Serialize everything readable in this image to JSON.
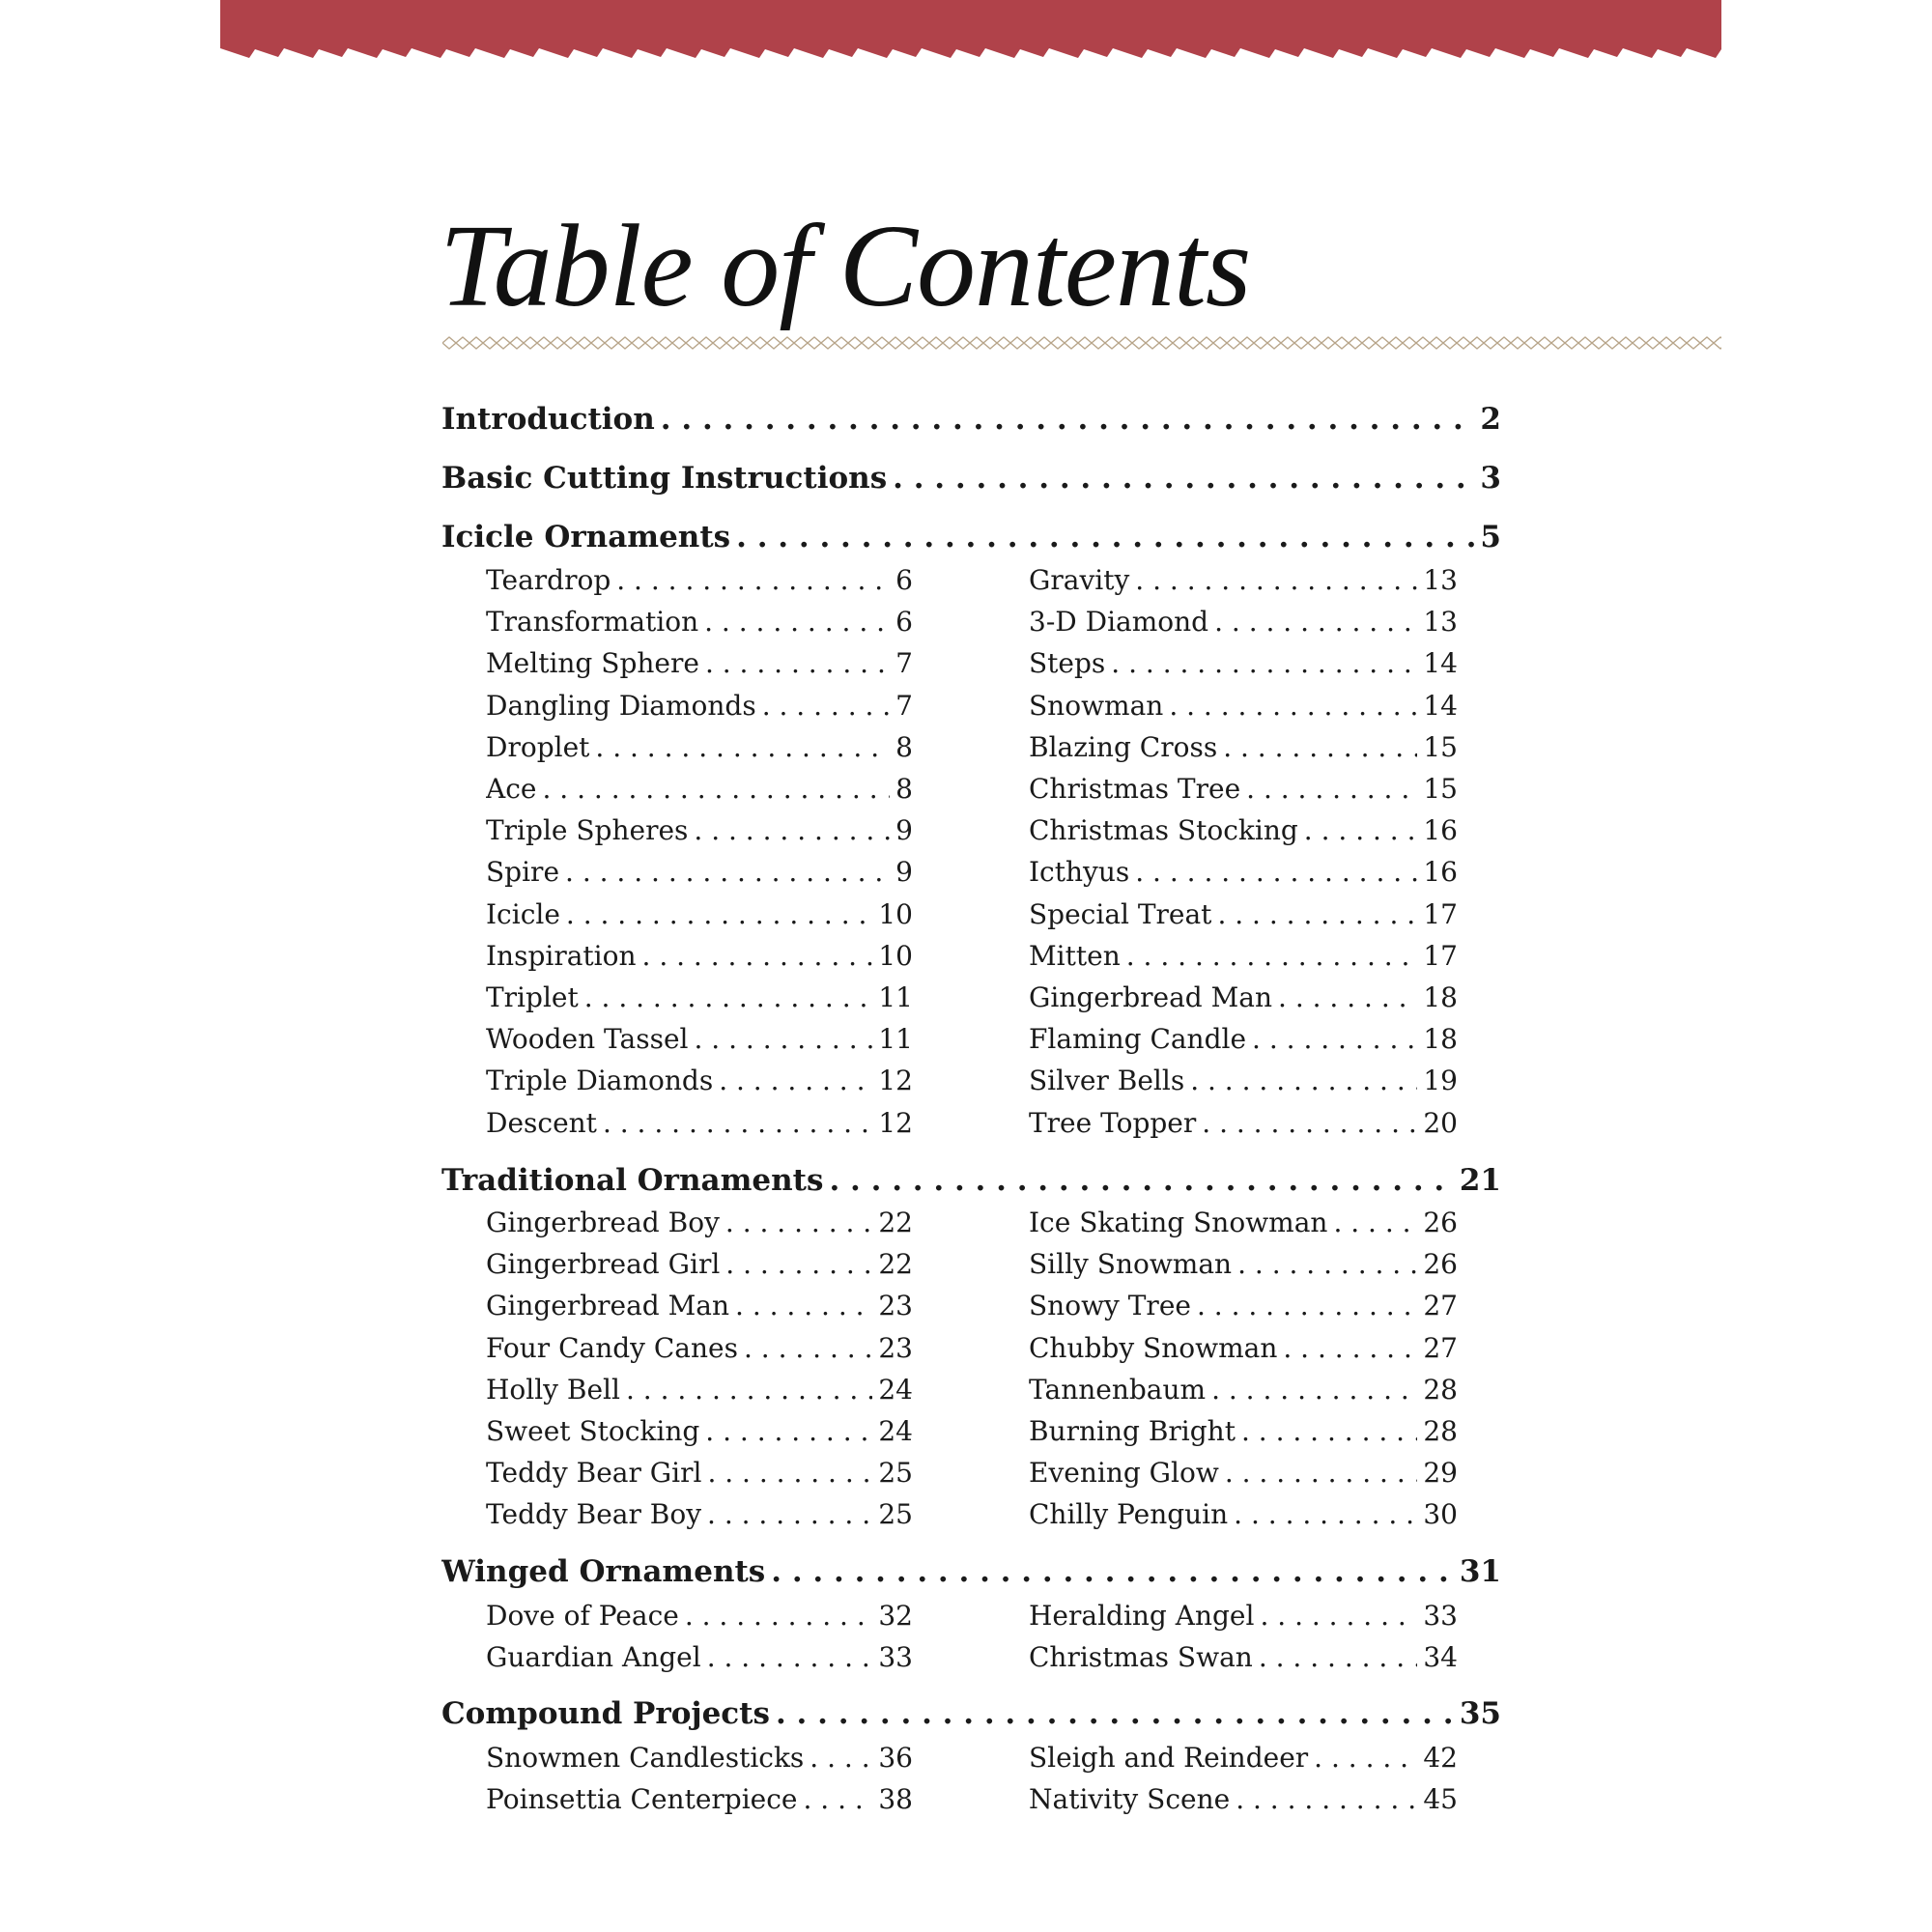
{
  "title": "Table of Contents",
  "colors": {
    "banner": "#b0424a",
    "divider": "#b8a58a"
  },
  "sections": [
    {
      "label": "Introduction",
      "page": "2",
      "items": []
    },
    {
      "label": "Basic Cutting Instructions",
      "page": "3",
      "items": []
    },
    {
      "label": "Icicle Ornaments",
      "page": "5",
      "items": [
        [
          "Teardrop",
          "6"
        ],
        [
          "Transformation",
          "6"
        ],
        [
          "Melting Sphere",
          "7"
        ],
        [
          "Dangling Diamonds",
          "7"
        ],
        [
          "Droplet",
          "8"
        ],
        [
          "Ace",
          "8"
        ],
        [
          "Triple Spheres",
          "9"
        ],
        [
          "Spire",
          "9"
        ],
        [
          "Icicle",
          "10"
        ],
        [
          "Inspiration",
          "10"
        ],
        [
          "Triplet",
          "11"
        ],
        [
          "Wooden Tassel",
          "11"
        ],
        [
          "Triple Diamonds",
          "12"
        ],
        [
          "Descent",
          "12"
        ],
        [
          "Gravity",
          "13"
        ],
        [
          "3-D Diamond",
          "13"
        ],
        [
          "Steps",
          "14"
        ],
        [
          "Snowman",
          "14"
        ],
        [
          "Blazing Cross",
          "15"
        ],
        [
          "Christmas Tree",
          "15"
        ],
        [
          "Christmas Stocking",
          "16"
        ],
        [
          "Icthyus",
          "16"
        ],
        [
          "Special Treat",
          "17"
        ],
        [
          "Mitten",
          "17"
        ],
        [
          "Gingerbread Man",
          "18"
        ],
        [
          "Flaming Candle",
          "18"
        ],
        [
          "Silver Bells",
          "19"
        ],
        [
          "Tree Topper",
          "20"
        ]
      ]
    },
    {
      "label": "Traditional Ornaments",
      "page": "21",
      "items": [
        [
          "Gingerbread Boy",
          "22"
        ],
        [
          "Gingerbread Girl",
          "22"
        ],
        [
          "Gingerbread Man",
          "23"
        ],
        [
          "Four Candy Canes",
          "23"
        ],
        [
          "Holly Bell",
          "24"
        ],
        [
          "Sweet Stocking",
          "24"
        ],
        [
          "Teddy Bear Girl",
          "25"
        ],
        [
          "Teddy Bear Boy",
          "25"
        ],
        [
          "Ice Skating Snowman",
          "26"
        ],
        [
          "Silly Snowman",
          "26"
        ],
        [
          "Snowy Tree",
          "27"
        ],
        [
          "Chubby Snowman",
          "27"
        ],
        [
          "Tannenbaum",
          "28"
        ],
        [
          "Burning Bright",
          "28"
        ],
        [
          "Evening Glow",
          "29"
        ],
        [
          "Chilly Penguin",
          "30"
        ]
      ]
    },
    {
      "label": "Winged Ornaments",
      "page": "31",
      "items": [
        [
          "Dove of Peace",
          "32"
        ],
        [
          "Guardian Angel",
          "33"
        ],
        [
          "Heralding Angel",
          "33"
        ],
        [
          "Christmas Swan",
          "34"
        ]
      ]
    },
    {
      "label": "Compound Projects",
      "page": "35",
      "items": [
        [
          "Snowmen Candlesticks",
          "36"
        ],
        [
          "Poinsettia Centerpiece",
          "38"
        ],
        [
          "Sleigh and Reindeer",
          "42"
        ],
        [
          "Nativity Scene",
          "45"
        ]
      ]
    }
  ]
}
